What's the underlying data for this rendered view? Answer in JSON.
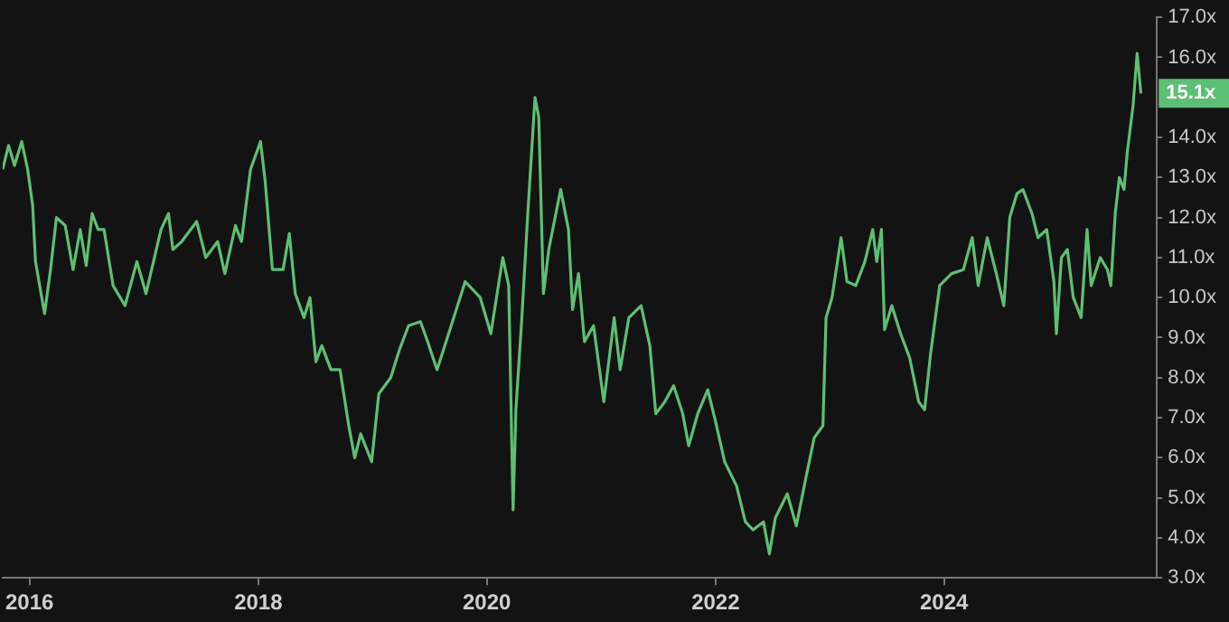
{
  "chart_data": {
    "type": "line",
    "x": [
      "2015-10-07",
      "2015-10-26",
      "2015-11-14",
      "2015-12-07",
      "2015-12-26",
      "2016-01-11",
      "2016-01-20",
      "2016-02-18",
      "2016-03-08",
      "2016-03-27",
      "2016-04-24",
      "2016-05-19",
      "2016-06-11",
      "2016-06-30",
      "2016-07-19",
      "2016-08-07",
      "2016-08-26",
      "2016-09-24",
      "2016-11-01",
      "2016-12-09",
      "2017-01-07",
      "2017-02-24",
      "2017-03-20",
      "2017-04-03",
      "2017-05-01",
      "2017-06-18",
      "2017-07-17",
      "2017-08-24",
      "2017-09-16",
      "2017-10-20",
      "2017-11-08",
      "2017-12-07",
      "2018-01-08",
      "2018-01-23",
      "2018-02-15",
      "2018-03-21",
      "2018-04-10",
      "2018-04-29",
      "2018-05-27",
      "2018-06-15",
      "2018-07-04",
      "2018-07-23",
      "2018-08-21",
      "2018-09-19",
      "2018-10-17",
      "2018-11-05",
      "2018-11-24",
      "2018-12-29",
      "2019-01-21",
      "2019-02-28",
      "2019-03-28",
      "2019-04-26",
      "2019-06-03",
      "2019-06-26",
      "2019-07-26",
      "2019-08-28",
      "2019-10-24",
      "2019-12-11",
      "2020-01-14",
      "2020-02-21",
      "2020-03-11",
      "2020-03-25",
      "2020-04-03",
      "2020-04-22",
      "2020-05-11",
      "2020-06-03",
      "2020-06-15",
      "2020-06-30",
      "2020-07-17",
      "2020-08-24",
      "2020-09-18",
      "2020-10-01",
      "2020-10-20",
      "2020-11-08",
      "2020-12-07",
      "2021-01-09",
      "2021-02-11",
      "2021-03-02",
      "2021-03-30",
      "2021-05-08",
      "2021-06-05",
      "2021-06-24",
      "2021-07-23",
      "2021-08-20",
      "2021-09-18",
      "2021-10-07",
      "2021-11-05",
      "2021-12-07",
      "2022-01-01",
      "2022-01-30",
      "2022-03-09",
      "2022-04-06",
      "2022-05-01",
      "2022-06-03",
      "2022-06-22",
      "2022-07-11",
      "2022-08-18",
      "2022-09-16",
      "2022-10-14",
      "2022-11-12",
      "2022-12-10",
      "2022-12-20",
      "2023-01-08",
      "2023-02-06",
      "2023-02-25",
      "2023-03-25",
      "2023-04-23",
      "2023-05-18",
      "2023-05-31",
      "2023-06-15",
      "2023-06-25",
      "2023-07-18",
      "2023-08-15",
      "2023-09-13",
      "2023-10-12",
      "2023-10-31",
      "2023-11-19",
      "2023-12-18",
      "2024-01-25",
      "2024-03-03",
      "2024-03-31",
      "2024-04-19",
      "2024-05-18",
      "2024-06-16",
      "2024-07-10",
      "2024-07-29",
      "2024-08-21",
      "2024-09-09",
      "2024-10-08",
      "2024-10-27",
      "2024-11-24",
      "2024-12-17",
      "2024-12-25",
      "2025-01-10",
      "2025-01-29",
      "2025-02-17",
      "2025-03-14",
      "2025-04-02",
      "2025-04-15",
      "2025-05-14",
      "2025-06-06",
      "2025-06-17",
      "2025-07-01",
      "2025-07-14",
      "2025-07-29",
      "2025-08-08",
      "2025-08-27",
      "2025-09-09",
      "2025-09-21"
    ],
    "series": [
      {
        "color": "#5dbf74",
        "values": [
          13.2,
          13.8,
          13.3,
          13.9,
          13.2,
          12.3,
          10.9,
          9.6,
          10.7,
          12.0,
          11.8,
          10.7,
          11.7,
          10.8,
          12.1,
          11.7,
          11.7,
          10.3,
          9.8,
          10.9,
          10.1,
          11.7,
          12.1,
          11.2,
          11.4,
          11.9,
          11.0,
          11.4,
          10.6,
          11.8,
          11.4,
          13.2,
          13.9,
          12.9,
          10.7,
          10.7,
          11.6,
          10.1,
          9.5,
          10.0,
          8.4,
          8.8,
          8.2,
          8.2,
          6.8,
          6.0,
          6.6,
          5.9,
          7.6,
          8.0,
          8.7,
          9.3,
          9.4,
          8.9,
          8.2,
          9.0,
          10.4,
          10.0,
          9.1,
          11.0,
          10.3,
          4.7,
          7.2,
          9.5,
          12.1,
          15.0,
          14.5,
          10.1,
          11.2,
          12.7,
          11.7,
          9.7,
          10.6,
          8.9,
          9.3,
          7.4,
          9.5,
          8.2,
          9.5,
          9.8,
          8.8,
          7.1,
          7.4,
          7.8,
          7.1,
          6.3,
          7.1,
          7.7,
          6.9,
          5.9,
          5.3,
          4.4,
          4.2,
          4.4,
          3.6,
          4.5,
          5.1,
          4.3,
          5.4,
          6.5,
          6.8,
          9.5,
          10.0,
          11.5,
          10.4,
          10.3,
          10.9,
          11.7,
          10.9,
          11.7,
          9.2,
          9.8,
          9.1,
          8.5,
          7.4,
          7.2,
          8.6,
          10.3,
          10.6,
          10.7,
          11.5,
          10.3,
          11.5,
          10.6,
          9.8,
          12.0,
          12.6,
          12.7,
          12.1,
          11.5,
          11.7,
          10.4,
          9.1,
          11.0,
          11.2,
          10.0,
          9.5,
          11.7,
          10.3,
          11.0,
          10.7,
          10.3,
          12.1,
          13.0,
          12.7,
          13.6,
          14.8,
          16.1,
          15.1
        ]
      }
    ],
    "xlim": [
      "2015-10-07",
      "2025-11-11"
    ],
    "xticks": [
      "2016",
      "2018",
      "2020",
      "2022",
      "2024"
    ],
    "ylim": [
      3,
      17
    ],
    "yticks": [
      {
        "value": 3,
        "label": "3.0x"
      },
      {
        "value": 4,
        "label": "4.0x"
      },
      {
        "value": 5,
        "label": "5.0x"
      },
      {
        "value": 6,
        "label": "6.0x"
      },
      {
        "value": 7,
        "label": "7.0x"
      },
      {
        "value": 8,
        "label": "8.0x"
      },
      {
        "value": 9,
        "label": "9.0x"
      },
      {
        "value": 10,
        "label": "10.0x"
      },
      {
        "value": 11,
        "label": "11.0x"
      },
      {
        "value": 12,
        "label": "12.0x"
      },
      {
        "value": 13,
        "label": "13.0x"
      },
      {
        "value": 14,
        "label": "14.0x"
      },
      {
        "value": 16,
        "label": "16.0x"
      },
      {
        "value": 17,
        "label": "17.0x"
      }
    ],
    "annotations": [
      {
        "text": "15.1x",
        "y": 15.1
      }
    ],
    "grid": false,
    "legend": false,
    "marker": "none",
    "line_style": "solid"
  }
}
